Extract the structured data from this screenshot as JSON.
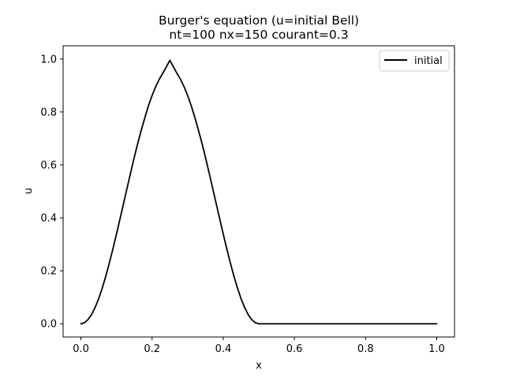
{
  "chart_data": {
    "type": "line",
    "title_line1": "Burger's equation (u=initial Bell)",
    "title_line2": "nt=100 nx=150 courant=0.3",
    "xlabel": "x",
    "ylabel": "u",
    "xlim": [
      -0.05,
      1.05
    ],
    "ylim": [
      -0.05,
      1.05
    ],
    "xticks": [
      0.0,
      0.2,
      0.4,
      0.6,
      0.8,
      1.0
    ],
    "xtick_labels": [
      "0.0",
      "0.2",
      "0.4",
      "0.6",
      "0.8",
      "1.0"
    ],
    "yticks": [
      0.0,
      0.2,
      0.4,
      0.6,
      0.8,
      1.0
    ],
    "ytick_labels": [
      "0.0",
      "0.2",
      "0.4",
      "0.6",
      "0.8",
      "1.0"
    ],
    "grid": false,
    "legend_position": "top-right",
    "series": [
      {
        "name": "initial",
        "color": "#000000",
        "x": [
          0.0,
          0.01,
          0.02,
          0.03,
          0.04,
          0.05,
          0.06,
          0.07,
          0.08,
          0.09,
          0.1,
          0.11,
          0.12,
          0.13,
          0.14,
          0.15,
          0.16,
          0.17,
          0.18,
          0.19,
          0.2,
          0.21,
          0.22,
          0.23,
          0.24,
          0.25,
          0.26,
          0.27,
          0.28,
          0.29,
          0.3,
          0.31,
          0.32,
          0.33,
          0.34,
          0.35,
          0.36,
          0.37,
          0.38,
          0.39,
          0.4,
          0.41,
          0.42,
          0.43,
          0.44,
          0.45,
          0.46,
          0.47,
          0.48,
          0.49,
          0.5,
          0.55,
          0.6,
          0.65,
          0.7,
          0.75,
          0.8,
          0.85,
          0.9,
          0.95,
          1.0
        ],
        "y": [
          0.0,
          0.004,
          0.016,
          0.035,
          0.062,
          0.095,
          0.135,
          0.18,
          0.23,
          0.283,
          0.339,
          0.397,
          0.455,
          0.514,
          0.572,
          0.629,
          0.683,
          0.733,
          0.78,
          0.824,
          0.862,
          0.895,
          0.923,
          0.946,
          0.97,
          0.995,
          0.97,
          0.946,
          0.923,
          0.895,
          0.862,
          0.824,
          0.78,
          0.733,
          0.683,
          0.629,
          0.572,
          0.514,
          0.455,
          0.397,
          0.339,
          0.283,
          0.23,
          0.18,
          0.135,
          0.095,
          0.062,
          0.035,
          0.016,
          0.004,
          0.0,
          0.0,
          0.0,
          0.0,
          0.0,
          0.0,
          0.0,
          0.0,
          0.0,
          0.0,
          0.0
        ]
      }
    ]
  }
}
